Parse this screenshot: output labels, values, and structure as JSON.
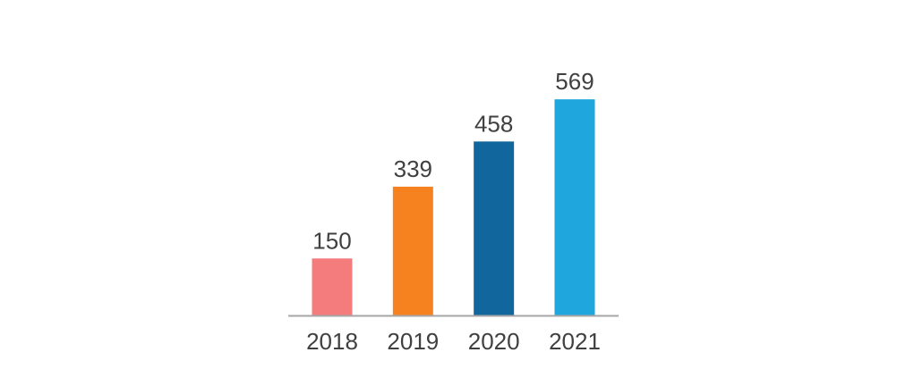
{
  "chart_data": {
    "type": "bar",
    "categories": [
      "2018",
      "2019",
      "2020",
      "2021"
    ],
    "values": [
      150,
      339,
      458,
      569
    ],
    "value_labels": [
      "150",
      "339",
      "458",
      "569"
    ],
    "colors": [
      "#f47c7c",
      "#f5821f",
      "#12669e",
      "#1fa6dd"
    ],
    "axis_color": "#a6a6a6",
    "ylim": [
      0,
      600
    ],
    "grid": false,
    "legend": "none"
  }
}
